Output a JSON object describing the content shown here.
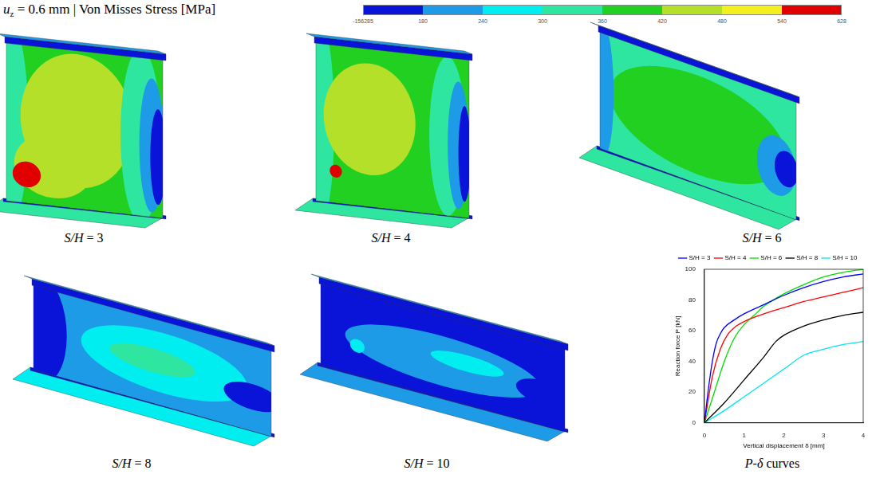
{
  "header": {
    "symbol": "u",
    "subscript": "z",
    "text": " = 0.6 mm | Von Misses Stress [MPa]"
  },
  "colorbar": {
    "ticks": [
      -156285,
      180,
      240,
      300,
      360,
      420,
      480,
      540,
      628
    ],
    "colors": [
      "#0a14d8",
      "#1e9be6",
      "#00eef0",
      "#2ee6a0",
      "#22d022",
      "#b4e02a",
      "#f4f020",
      "#e00000"
    ]
  },
  "panels": [
    {
      "caption": "S/H = 3"
    },
    {
      "caption": "S/H = 4"
    },
    {
      "caption": "S/H = 6"
    },
    {
      "caption": "S/H = 8"
    },
    {
      "caption": "S/H = 10"
    }
  ],
  "chart_data": {
    "type": "line",
    "caption": "P-δ curves",
    "x_label": "Vertical displacement δ [mm]",
    "y_label": "Reaction force P [kN]",
    "xlim": [
      0,
      4
    ],
    "xticks": [
      0,
      1,
      2,
      3,
      4
    ],
    "ylim": [
      0,
      100
    ],
    "yticks": [
      0,
      20,
      40,
      60,
      80,
      100
    ],
    "grid": false,
    "legend": "top",
    "series": [
      {
        "name": "S/H = 3",
        "color": "#0000ff",
        "x": [
          0,
          0.1,
          0.2,
          0.3,
          0.4,
          0.5,
          0.75,
          1,
          1.5,
          2,
          2.5,
          3,
          3.5,
          4
        ],
        "values": [
          0,
          22,
          40,
          52,
          58,
          62,
          67,
          71,
          77,
          83,
          88,
          92,
          95,
          97
        ]
      },
      {
        "name": "S/H = 4",
        "color": "#ff0000",
        "x": [
          0,
          0.2,
          0.4,
          0.6,
          0.8,
          1,
          1.5,
          2,
          2.5,
          3,
          3.5,
          4
        ],
        "values": [
          0,
          30,
          48,
          58,
          63,
          66,
          71,
          75,
          79,
          82,
          85,
          88
        ]
      },
      {
        "name": "S/H = 6",
        "color": "#00dd00",
        "x": [
          0,
          0.25,
          0.5,
          0.75,
          1,
          1.25,
          1.5,
          2,
          2.5,
          3,
          3.5,
          4
        ],
        "values": [
          0,
          20,
          40,
          55,
          64,
          70,
          76,
          84,
          90,
          95,
          98,
          100
        ]
      },
      {
        "name": "S/H = 8",
        "color": "#000000",
        "x": [
          0,
          0.5,
          1,
          1.5,
          1.8,
          2,
          2.5,
          3,
          3.5,
          4
        ],
        "values": [
          0,
          13,
          28,
          43,
          53,
          57,
          63,
          67,
          70,
          72
        ]
      },
      {
        "name": "S/H = 10",
        "color": "#00e5ee",
        "x": [
          0,
          0.5,
          1,
          1.5,
          2,
          2.5,
          3,
          3.5,
          4
        ],
        "values": [
          0,
          8,
          17,
          26,
          35,
          44,
          48,
          51,
          53
        ]
      }
    ]
  }
}
